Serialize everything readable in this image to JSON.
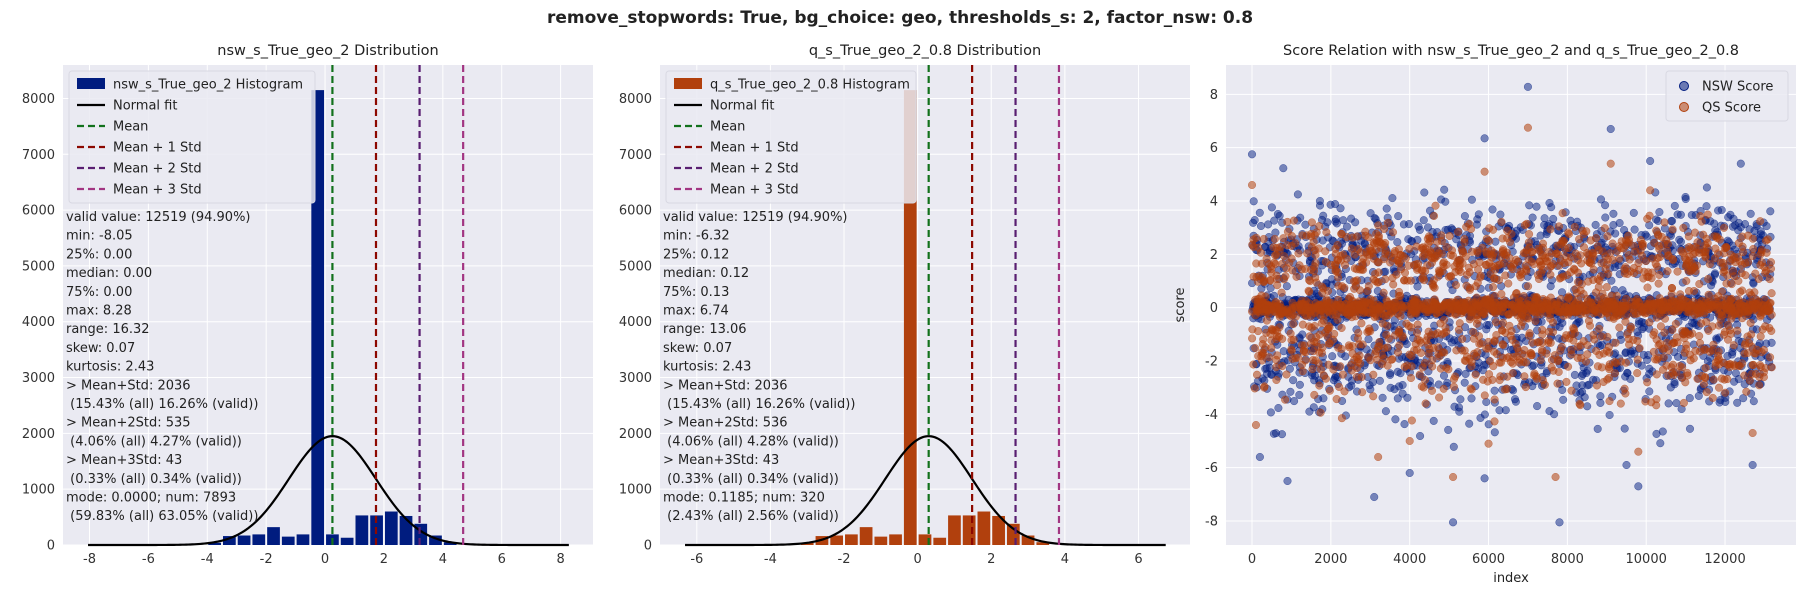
{
  "figure": {
    "suptitle": "remove_stopwords: True, bg_choice: geo, thresholds_s: 2, factor_nsw: 0.8"
  },
  "colors": {
    "background": "#eaeaf2",
    "grid": "#ffffff",
    "nsw": "#001c7f",
    "qs": "#b1400d",
    "normal_fit": "#000000",
    "mean": "#12711c",
    "mean_1std": "#8c0800",
    "mean_2std": "#591e71",
    "mean_3std": "#a23582"
  },
  "chart_data": [
    {
      "type": "bar",
      "title": "nsw_s_True_geo_2 Distribution",
      "xlabel": "",
      "ylabel": "",
      "xlim": [
        -8.9,
        9.1
      ],
      "ylim": [
        0,
        8600
      ],
      "xticks": [
        -8,
        -6,
        -4,
        -2,
        0,
        2,
        4,
        6,
        8
      ],
      "yticks": [
        0,
        1000,
        2000,
        3000,
        4000,
        5000,
        6000,
        7000,
        8000
      ],
      "grid": true,
      "legend_position": "top-left",
      "histogram": {
        "name": "nsw_s_True_geo_2 Histogram",
        "bin_width": 0.5,
        "bins": [
          {
            "x0": -4.0,
            "count": 40
          },
          {
            "x0": -3.5,
            "count": 160
          },
          {
            "x0": -3.0,
            "count": 170
          },
          {
            "x0": -2.5,
            "count": 190
          },
          {
            "x0": -2.0,
            "count": 320
          },
          {
            "x0": -1.5,
            "count": 150
          },
          {
            "x0": -1.0,
            "count": 190
          },
          {
            "x0": -0.5,
            "count": 8150
          },
          {
            "x0": 0.0,
            "count": 190
          },
          {
            "x0": 0.5,
            "count": 130
          },
          {
            "x0": 1.0,
            "count": 530
          },
          {
            "x0": 1.5,
            "count": 530
          },
          {
            "x0": 2.0,
            "count": 600
          },
          {
            "x0": 2.5,
            "count": 520
          },
          {
            "x0": 3.0,
            "count": 380
          },
          {
            "x0": 3.5,
            "count": 170
          },
          {
            "x0": 4.0,
            "count": 50
          }
        ]
      },
      "normal_fit": {
        "name": "Normal fit",
        "mean": 0.25,
        "std": 1.48,
        "peak": 1950,
        "range": [
          -8.05,
          8.28
        ]
      },
      "vlines": [
        {
          "name": "Mean",
          "x": 0.25,
          "color_key": "mean"
        },
        {
          "name": "Mean + 1 Std",
          "x": 1.73,
          "color_key": "mean_1std"
        },
        {
          "name": "Mean + 2 Std",
          "x": 3.21,
          "color_key": "mean_2std"
        },
        {
          "name": "Mean + 3 Std",
          "x": 4.69,
          "color_key": "mean_3std"
        }
      ],
      "legend": [
        {
          "label": "nsw_s_True_geo_2 Histogram",
          "kind": "patch",
          "color_key": "nsw"
        },
        {
          "label": "Normal fit",
          "kind": "line",
          "color_key": "normal_fit"
        },
        {
          "label": "Mean",
          "kind": "dash",
          "color_key": "mean"
        },
        {
          "label": "Mean + 1 Std",
          "kind": "dash",
          "color_key": "mean_1std"
        },
        {
          "label": "Mean + 2 Std",
          "kind": "dash",
          "color_key": "mean_2std"
        },
        {
          "label": "Mean + 3 Std",
          "kind": "dash",
          "color_key": "mean_3std"
        }
      ],
      "stats": [
        "valid value: 12519 (94.90%)",
        "min: -8.05",
        "25%: 0.00",
        "median: 0.00",
        "75%: 0.00",
        "max: 8.28",
        "range: 16.32",
        "skew: 0.07",
        "kurtosis: 2.43",
        "> Mean+Std: 2036",
        " (15.43% (all) 16.26% (valid))",
        "> Mean+2Std: 535",
        " (4.06% (all) 4.27% (valid))",
        "> Mean+3Std: 43",
        " (0.33% (all) 0.34% (valid))",
        "mode: 0.0000; num: 7893",
        " (59.83% (all) 63.05% (valid))"
      ]
    },
    {
      "type": "bar",
      "title": "q_s_True_geo_2_0.8 Distribution",
      "xlabel": "",
      "ylabel": "",
      "xlim": [
        -7.0,
        7.4
      ],
      "ylim": [
        0,
        8600
      ],
      "xticks": [
        -6,
        -4,
        -2,
        0,
        2,
        4,
        6
      ],
      "yticks": [
        0,
        1000,
        2000,
        3000,
        4000,
        5000,
        6000,
        7000,
        8000
      ],
      "grid": true,
      "legend_position": "top-left",
      "histogram": {
        "name": "q_s_True_geo_2_0.8 Histogram",
        "bin_width": 0.4,
        "bins": [
          {
            "x0": -3.2,
            "count": 40
          },
          {
            "x0": -2.8,
            "count": 160
          },
          {
            "x0": -2.4,
            "count": 170
          },
          {
            "x0": -2.0,
            "count": 190
          },
          {
            "x0": -1.6,
            "count": 320
          },
          {
            "x0": -1.2,
            "count": 150
          },
          {
            "x0": -0.8,
            "count": 190
          },
          {
            "x0": -0.4,
            "count": 8150
          },
          {
            "x0": 0.0,
            "count": 190
          },
          {
            "x0": 0.4,
            "count": 130
          },
          {
            "x0": 0.8,
            "count": 530
          },
          {
            "x0": 1.2,
            "count": 530
          },
          {
            "x0": 1.6,
            "count": 600
          },
          {
            "x0": 2.0,
            "count": 520
          },
          {
            "x0": 2.4,
            "count": 380
          },
          {
            "x0": 2.8,
            "count": 170
          },
          {
            "x0": 3.2,
            "count": 50
          }
        ]
      },
      "normal_fit": {
        "name": "Normal fit",
        "mean": 0.3,
        "std": 1.18,
        "peak": 1950,
        "range": [
          -6.32,
          6.74
        ]
      },
      "vlines": [
        {
          "name": "Mean",
          "x": 0.3,
          "color_key": "mean"
        },
        {
          "name": "Mean + 1 Std",
          "x": 1.48,
          "color_key": "mean_1std"
        },
        {
          "name": "Mean + 2 Std",
          "x": 2.66,
          "color_key": "mean_2std"
        },
        {
          "name": "Mean + 3 Std",
          "x": 3.84,
          "color_key": "mean_3std"
        }
      ],
      "legend": [
        {
          "label": "q_s_True_geo_2_0.8 Histogram",
          "kind": "patch",
          "color_key": "qs"
        },
        {
          "label": "Normal fit",
          "kind": "line",
          "color_key": "normal_fit"
        },
        {
          "label": "Mean",
          "kind": "dash",
          "color_key": "mean"
        },
        {
          "label": "Mean + 1 Std",
          "kind": "dash",
          "color_key": "mean_1std"
        },
        {
          "label": "Mean + 2 Std",
          "kind": "dash",
          "color_key": "mean_2std"
        },
        {
          "label": "Mean + 3 Std",
          "kind": "dash",
          "color_key": "mean_3std"
        }
      ],
      "stats": [
        "valid value: 12519 (94.90%)",
        "min: -6.32",
        "25%: 0.12",
        "median: 0.12",
        "75%: 0.13",
        "max: 6.74",
        "range: 13.06",
        "skew: 0.07",
        "kurtosis: 2.43",
        "> Mean+Std: 2036",
        " (15.43% (all) 16.26% (valid))",
        "> Mean+2Std: 536",
        " (4.06% (all) 4.28% (valid))",
        "> Mean+3Std: 43",
        " (0.33% (all) 0.34% (valid))",
        "mode: 0.1185; num: 320",
        " (2.43% (all) 2.56% (valid))"
      ]
    },
    {
      "type": "scatter",
      "title": "Score Relation with nsw_s_True_geo_2 and q_s_True_geo_2_0.8",
      "xlabel": "index",
      "ylabel": "score",
      "xlim": [
        -660,
        13800
      ],
      "ylim": [
        -8.9,
        9.1
      ],
      "xticks": [
        0,
        2000,
        4000,
        6000,
        8000,
        10000,
        12000
      ],
      "yticks": [
        -8,
        -6,
        -4,
        -2,
        0,
        2,
        4,
        6,
        8
      ],
      "grid": true,
      "legend_position": "top-right",
      "n_points": 13190,
      "series": [
        {
          "name": "NSW Score",
          "color_key": "nsw",
          "outliers": [
            [
              7000,
              8.28
            ],
            [
              9100,
              6.7
            ],
            [
              5900,
              6.35
            ],
            [
              5100,
              -8.05
            ],
            [
              7800,
              -8.05
            ],
            [
              3100,
              -7.1
            ],
            [
              9800,
              -6.7
            ],
            [
              900,
              -6.5
            ],
            [
              4000,
              -6.2
            ],
            [
              5900,
              -6.4
            ],
            [
              12700,
              -5.9
            ],
            [
              200,
              -5.6
            ],
            [
              10100,
              5.5
            ],
            [
              0,
              5.75
            ],
            [
              12400,
              5.4
            ],
            [
              9500,
              -5.9
            ]
          ]
        },
        {
          "name": "QS Score",
          "color_key": "qs",
          "outliers": [
            [
              7000,
              6.75
            ],
            [
              9100,
              5.4
            ],
            [
              5900,
              5.1
            ],
            [
              5100,
              -6.35
            ],
            [
              7700,
              -6.35
            ],
            [
              3200,
              -5.6
            ],
            [
              9800,
              -5.4
            ],
            [
              4000,
              -5.0
            ],
            [
              6000,
              -5.1
            ],
            [
              12700,
              -4.7
            ],
            [
              100,
              -4.4
            ],
            [
              10100,
              4.4
            ],
            [
              0,
              4.6
            ]
          ]
        }
      ],
      "legend": [
        {
          "label": "NSW Score",
          "kind": "marker",
          "color_key": "nsw"
        },
        {
          "label": "QS Score",
          "kind": "marker",
          "color_key": "qs"
        }
      ]
    }
  ]
}
